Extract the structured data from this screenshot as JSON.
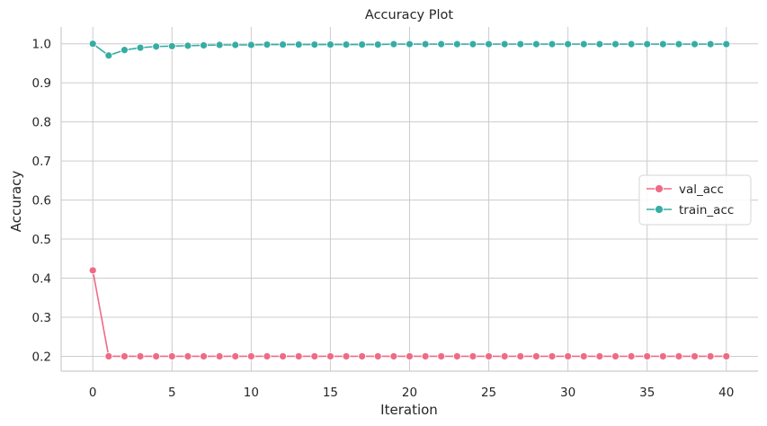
{
  "chart_data": {
    "type": "line",
    "title": "Accuracy Plot",
    "xlabel": "Iteration",
    "ylabel": "Accuracy",
    "xlim": [
      -2,
      42
    ],
    "ylim": [
      0.162,
      1.043
    ],
    "xticks": [
      0,
      5,
      10,
      15,
      20,
      25,
      30,
      35,
      40
    ],
    "yticks": [
      0.2,
      0.3,
      0.4,
      0.5,
      0.6,
      0.7,
      0.8,
      0.9,
      1.0
    ],
    "xtick_labels": [
      "0",
      "5",
      "10",
      "15",
      "20",
      "25",
      "30",
      "35",
      "40"
    ],
    "ytick_labels": [
      "0.2",
      "0.3",
      "0.4",
      "0.5",
      "0.6",
      "0.7",
      "0.8",
      "0.9",
      "1.0"
    ],
    "grid": true,
    "legend_position": "center-right",
    "x": [
      0,
      1,
      2,
      3,
      4,
      5,
      6,
      7,
      8,
      9,
      10,
      11,
      12,
      13,
      14,
      15,
      16,
      17,
      18,
      19,
      20,
      21,
      22,
      23,
      24,
      25,
      26,
      27,
      28,
      29,
      30,
      31,
      32,
      33,
      34,
      35,
      36,
      37,
      38,
      39,
      40
    ],
    "series": [
      {
        "name": "val_acc",
        "color": "#ee6b85",
        "values": [
          0.42,
          0.2,
          0.2,
          0.2,
          0.2,
          0.2,
          0.2,
          0.2,
          0.2,
          0.2,
          0.2,
          0.2,
          0.2,
          0.2,
          0.2,
          0.2,
          0.2,
          0.2,
          0.2,
          0.2,
          0.2,
          0.2,
          0.2,
          0.2,
          0.2,
          0.2,
          0.2,
          0.2,
          0.2,
          0.2,
          0.2,
          0.2,
          0.2,
          0.2,
          0.2,
          0.2,
          0.2,
          0.2,
          0.2,
          0.2,
          0.2
        ]
      },
      {
        "name": "train_acc",
        "color": "#36ada4",
        "values": [
          1.0,
          0.97,
          0.984,
          0.99,
          0.993,
          0.994,
          0.995,
          0.996,
          0.997,
          0.997,
          0.997,
          0.998,
          0.998,
          0.998,
          0.998,
          0.998,
          0.998,
          0.998,
          0.998,
          0.999,
          0.999,
          0.999,
          0.999,
          0.999,
          0.999,
          0.999,
          0.999,
          0.999,
          0.999,
          0.999,
          0.999,
          0.999,
          0.999,
          0.999,
          0.999,
          0.999,
          0.999,
          0.999,
          0.999,
          0.999,
          0.999
        ]
      }
    ]
  }
}
